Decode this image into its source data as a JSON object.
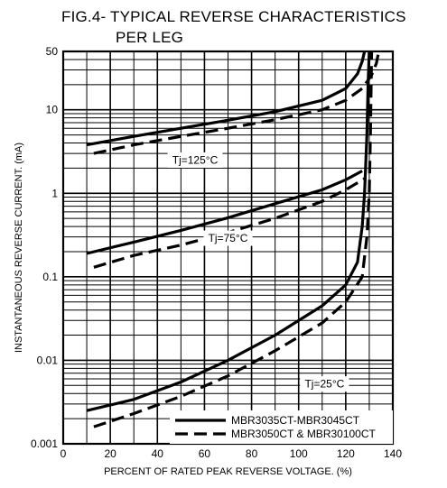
{
  "chart_data": {
    "type": "line",
    "title": [
      "FIG.4- TYPICAL REVERSE CHARACTERISTICS",
      "PER LEG"
    ],
    "xlabel": "PERCENT OF RATED PEAK REVERSE VOLTAGE. (%)",
    "ylabel": "INSTANTANEOUS REVERSE CURRENT. (mA)",
    "xlim": [
      0,
      140
    ],
    "ylim": [
      0.001,
      50
    ],
    "yscale": "log",
    "grid": true,
    "x_ticks": [
      0,
      20,
      40,
      60,
      80,
      100,
      120,
      140
    ],
    "y_ticks": [
      {
        "value": 0.001,
        "label": "0.001"
      },
      {
        "value": 0.01,
        "label": "0.01"
      },
      {
        "value": 0.1,
        "label": "0.1"
      },
      {
        "value": 1,
        "label": "1"
      },
      {
        "value": 10,
        "label": "10"
      },
      {
        "value": 50,
        "label": "50"
      }
    ],
    "legend": {
      "placement": "bottom-right",
      "entries": [
        {
          "label": "MBR3035CT-MBR3045CT",
          "style": "solid"
        },
        {
          "label": "MBR3050CT & MBR30100CT",
          "style": "dashed"
        }
      ]
    },
    "annotations": [
      {
        "text": "Tj=125°C",
        "x": 56,
        "y": 2.5
      },
      {
        "text": "Tj=75°C",
        "x": 70,
        "y": 0.29
      },
      {
        "text": "Tj=25°C",
        "x": 111,
        "y": 0.0052
      }
    ],
    "series": [
      {
        "style": "solid",
        "temp": "125",
        "x": [
          10,
          30,
          50,
          70,
          90,
          110,
          120,
          125,
          127,
          128
        ],
        "y": [
          3.8,
          4.8,
          6.0,
          7.5,
          9.5,
          13.0,
          18.0,
          27.0,
          38.0,
          50.0
        ]
      },
      {
        "style": "dashed",
        "temp": "125",
        "x": [
          13,
          30,
          50,
          70,
          90,
          110,
          120,
          127,
          131,
          133,
          134
        ],
        "y": [
          3.0,
          3.8,
          4.8,
          6.0,
          7.6,
          10.0,
          13.0,
          18.0,
          26.0,
          36.0,
          50.0
        ]
      },
      {
        "style": "solid",
        "temp": "75",
        "x": [
          10,
          30,
          50,
          70,
          90,
          110,
          120,
          127
        ],
        "y": [
          0.19,
          0.26,
          0.36,
          0.51,
          0.75,
          1.1,
          1.45,
          1.85
        ]
      },
      {
        "style": "dashed",
        "temp": "75",
        "x": [
          13,
          30,
          50,
          70,
          90,
          110,
          120,
          128
        ],
        "y": [
          0.13,
          0.18,
          0.24,
          0.34,
          0.5,
          0.8,
          1.1,
          1.5
        ]
      },
      {
        "style": "solid",
        "temp": "25",
        "x": [
          10,
          30,
          50,
          70,
          90,
          110,
          120,
          125,
          127,
          128,
          129,
          129.5,
          130
        ],
        "y": [
          0.0025,
          0.0034,
          0.0055,
          0.01,
          0.02,
          0.045,
          0.08,
          0.15,
          0.4,
          1.0,
          5.0,
          20.0,
          50.0
        ]
      },
      {
        "style": "dashed",
        "temp": "25",
        "x": [
          13,
          30,
          50,
          70,
          90,
          110,
          120,
          127,
          129,
          130,
          130.5,
          130.8,
          131
        ],
        "y": [
          0.0016,
          0.0023,
          0.0037,
          0.0065,
          0.013,
          0.028,
          0.05,
          0.1,
          0.3,
          1.0,
          5.0,
          20.0,
          50.0
        ]
      }
    ]
  }
}
